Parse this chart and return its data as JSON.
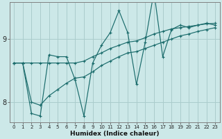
{
  "xlabel": "Humidex (Indice chaleur)",
  "xlim": [
    -0.5,
    23.5
  ],
  "ylim": [
    7.68,
    9.58
  ],
  "yticks": [
    8,
    9
  ],
  "xticks": [
    0,
    1,
    2,
    3,
    4,
    5,
    6,
    7,
    8,
    9,
    10,
    11,
    12,
    13,
    14,
    15,
    16,
    17,
    18,
    19,
    20,
    21,
    22,
    23
  ],
  "background_color": "#cce8e8",
  "grid_color": "#aacccc",
  "line_color": "#1a6b6b",
  "series": [
    {
      "x": [
        0,
        1,
        2,
        3,
        4,
        5,
        6,
        7,
        8,
        9,
        10,
        11,
        12,
        13,
        14,
        15,
        16,
        17,
        18,
        19,
        20,
        21,
        22,
        23
      ],
      "y": [
        8.62,
        8.62,
        7.82,
        7.78,
        8.75,
        8.72,
        8.72,
        8.35,
        7.78,
        8.62,
        8.9,
        9.1,
        9.45,
        9.1,
        8.28,
        8.95,
        9.75,
        8.72,
        9.15,
        9.22,
        9.18,
        9.22,
        9.25,
        9.22
      ]
    },
    {
      "x": [
        0,
        1,
        2,
        3,
        4,
        5,
        6,
        7,
        8,
        9,
        10,
        11,
        12,
        13,
        14,
        15,
        16,
        17,
        18,
        19,
        20,
        21,
        22,
        23
      ],
      "y": [
        8.62,
        8.62,
        8.62,
        8.62,
        8.62,
        8.62,
        8.62,
        8.62,
        8.65,
        8.72,
        8.78,
        8.85,
        8.9,
        8.95,
        8.97,
        9.02,
        9.08,
        9.12,
        9.16,
        9.18,
        9.2,
        9.22,
        9.24,
        9.25
      ]
    },
    {
      "x": [
        0,
        1,
        2,
        3,
        4,
        5,
        6,
        7,
        8,
        9,
        10,
        11,
        12,
        13,
        14,
        15,
        16,
        17,
        18,
        19,
        20,
        21,
        22,
        23
      ],
      "y": [
        8.62,
        8.62,
        8.0,
        7.95,
        8.1,
        8.2,
        8.3,
        8.38,
        8.4,
        8.48,
        8.58,
        8.65,
        8.72,
        8.78,
        8.8,
        8.85,
        8.9,
        8.95,
        9.0,
        9.05,
        9.08,
        9.12,
        9.15,
        9.18
      ]
    }
  ]
}
